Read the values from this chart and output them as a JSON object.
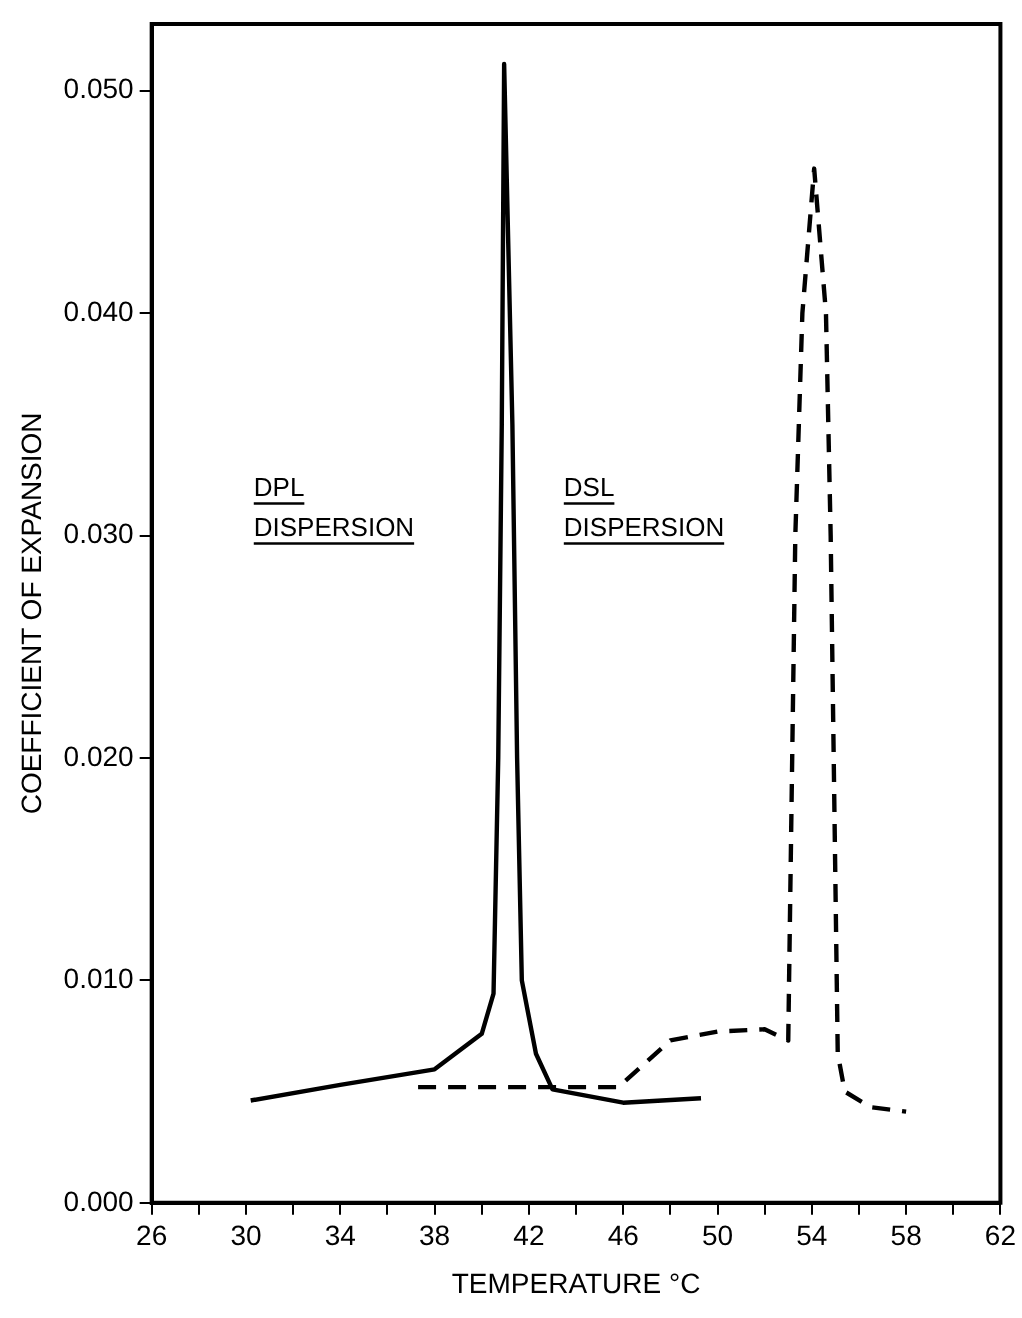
{
  "chart_data": {
    "type": "line",
    "xlabel": "TEMPERATURE °C",
    "ylabel": "COEFFICIENT OF EXPANSION",
    "xlim": [
      26,
      62
    ],
    "xticks": [
      26,
      {
        "value": 28,
        "label": null
      },
      30,
      {
        "value": 32,
        "label": null
      },
      34,
      {
        "value": 36,
        "label": null
      },
      38,
      {
        "value": 40,
        "label": null
      },
      42,
      {
        "value": 44,
        "label": null
      },
      46,
      {
        "value": 48,
        "label": null
      },
      50,
      {
        "value": 52,
        "label": null
      },
      54,
      {
        "value": 56,
        "label": null
      },
      58,
      {
        "value": 60,
        "label": null
      },
      62
    ],
    "ylim": [
      0,
      0.053
    ],
    "yticks": [
      {
        "value": 0,
        "label": "0.000"
      },
      {
        "value": 0.01,
        "label": "0.010"
      },
      {
        "value": 0.02,
        "label": "0.020"
      },
      {
        "value": 0.03,
        "label": "0.030"
      },
      {
        "value": 0.04,
        "label": "0.040"
      },
      {
        "value": 0.05,
        "label": "0.050"
      }
    ],
    "grid": false,
    "legend": false,
    "marker": "none",
    "series": [
      {
        "color": "#000000",
        "line_style": "solid",
        "x": [
          30.2,
          34,
          38,
          40,
          40.5,
          40.7,
          40.85,
          40.95,
          41.3,
          41.5,
          41.7,
          42.3,
          43,
          46,
          49.3
        ],
        "values": [
          0.0046,
          0.0053,
          0.006,
          0.0076,
          0.0094,
          0.02,
          0.035,
          0.0512,
          0.035,
          0.02,
          0.01,
          0.0067,
          0.0051,
          0.0045,
          0.0047
        ]
      },
      {
        "color": "#000000",
        "line_style": "dashed",
        "x": [
          37.3,
          42,
          45.8,
          48,
          50,
          52,
          53,
          53.3,
          53.6,
          54.1,
          54.6,
          54.8,
          55.1,
          55.4,
          56.5,
          58
        ],
        "values": [
          0.0052,
          0.0052,
          0.0052,
          0.0073,
          0.0077,
          0.0078,
          0.0073,
          0.03,
          0.04,
          0.0465,
          0.04,
          0.03,
          0.0067,
          0.005,
          0.0043,
          0.0041
        ]
      }
    ],
    "annotations": [
      "DPL DISPERSION",
      "DSL DISPERSION"
    ]
  }
}
